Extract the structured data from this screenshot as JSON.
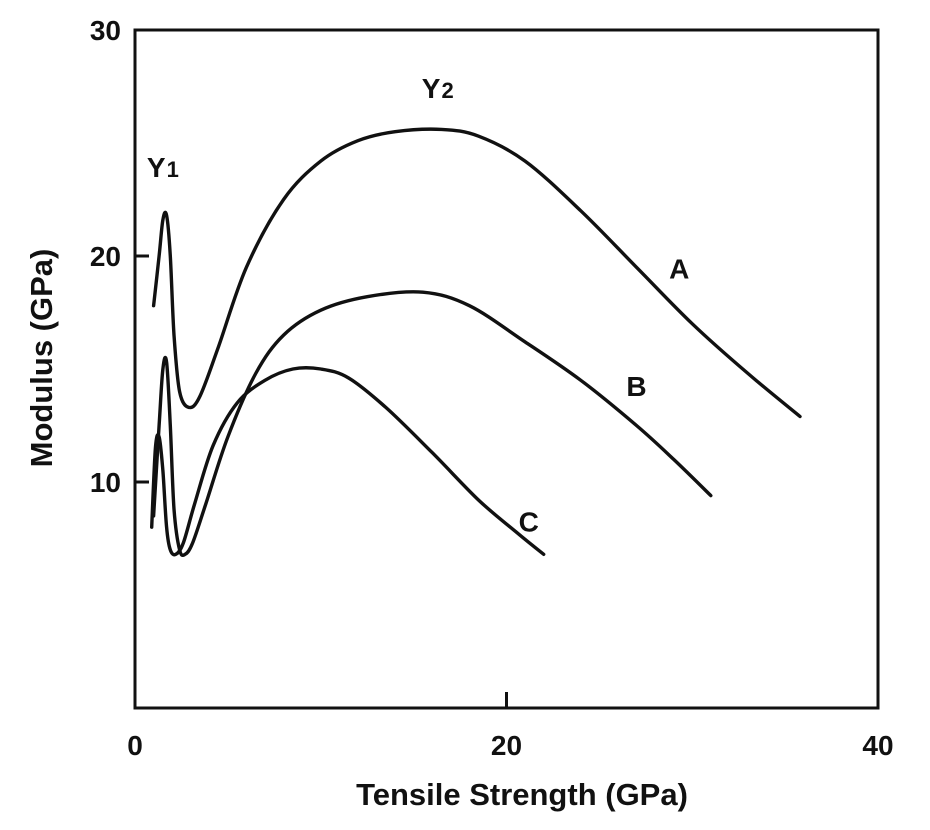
{
  "chart_data": {
    "type": "line",
    "title": "",
    "xlabel": "Tensile Strength (GPa)",
    "ylabel": "Modulus (GPa)",
    "xlim": [
      0,
      40
    ],
    "ylim": [
      0,
      30
    ],
    "grid": false,
    "legend": "none",
    "x_ticks": [
      {
        "value": 0,
        "label": "0"
      },
      {
        "value": 20,
        "label": "20"
      },
      {
        "value": 40,
        "label": "40"
      }
    ],
    "y_ticks": [
      {
        "value": 10,
        "label": "10"
      },
      {
        "value": 20,
        "label": "20"
      },
      {
        "value": 30,
        "label": "30"
      }
    ],
    "series": [
      {
        "name": "A",
        "x": [
          1.0,
          1.3,
          1.5,
          1.7,
          1.9,
          2.1,
          2.4,
          2.9,
          3.5,
          4.5,
          6.0,
          8.0,
          10.0,
          12.0,
          14.0,
          16.5,
          18.5,
          21.0,
          24.0,
          27.0,
          30.0,
          33.0,
          35.8
        ],
        "y": [
          17.8,
          20.0,
          21.6,
          21.8,
          20.0,
          16.5,
          14.0,
          13.3,
          13.8,
          16.0,
          19.5,
          22.5,
          24.2,
          25.1,
          25.5,
          25.6,
          25.3,
          24.2,
          22.0,
          19.5,
          17.0,
          14.8,
          12.9
        ]
      },
      {
        "name": "B",
        "x": [
          1.0,
          1.3,
          1.5,
          1.7,
          1.9,
          2.1,
          2.4,
          2.7,
          3.1,
          3.8,
          5.0,
          6.5,
          8.0,
          10.0,
          12.5,
          15.5,
          18.0,
          21.0,
          24.0,
          27.0,
          29.0,
          31.0
        ],
        "y": [
          8.5,
          12.5,
          15.0,
          15.3,
          12.5,
          8.8,
          7.0,
          6.8,
          7.3,
          9.0,
          12.0,
          14.8,
          16.5,
          17.6,
          18.2,
          18.4,
          17.8,
          16.2,
          14.5,
          12.5,
          11.0,
          9.4
        ]
      },
      {
        "name": "C",
        "x": [
          0.9,
          1.1,
          1.3,
          1.5,
          1.7,
          1.9,
          2.2,
          2.6,
          3.2,
          4.2,
          5.5,
          7.0,
          8.5,
          10.0,
          11.5,
          13.5,
          16.0,
          18.5,
          20.5,
          22.0
        ],
        "y": [
          8.0,
          11.5,
          12.0,
          10.5,
          8.0,
          7.0,
          6.8,
          7.3,
          9.0,
          11.6,
          13.5,
          14.5,
          15.0,
          15.0,
          14.6,
          13.3,
          11.3,
          9.2,
          7.8,
          6.8
        ]
      }
    ],
    "annotations": [
      {
        "text": "A",
        "x": 29.3,
        "y": 19.0
      },
      {
        "text": "B",
        "x": 27.0,
        "y": 13.8
      },
      {
        "text": "C",
        "x": 21.2,
        "y": 7.8
      },
      {
        "text": "Y",
        "sub": "1",
        "x": 1.5,
        "y": 23.5
      },
      {
        "text": "Y",
        "sub": "2",
        "x": 16.3,
        "y": 27.0
      }
    ]
  }
}
